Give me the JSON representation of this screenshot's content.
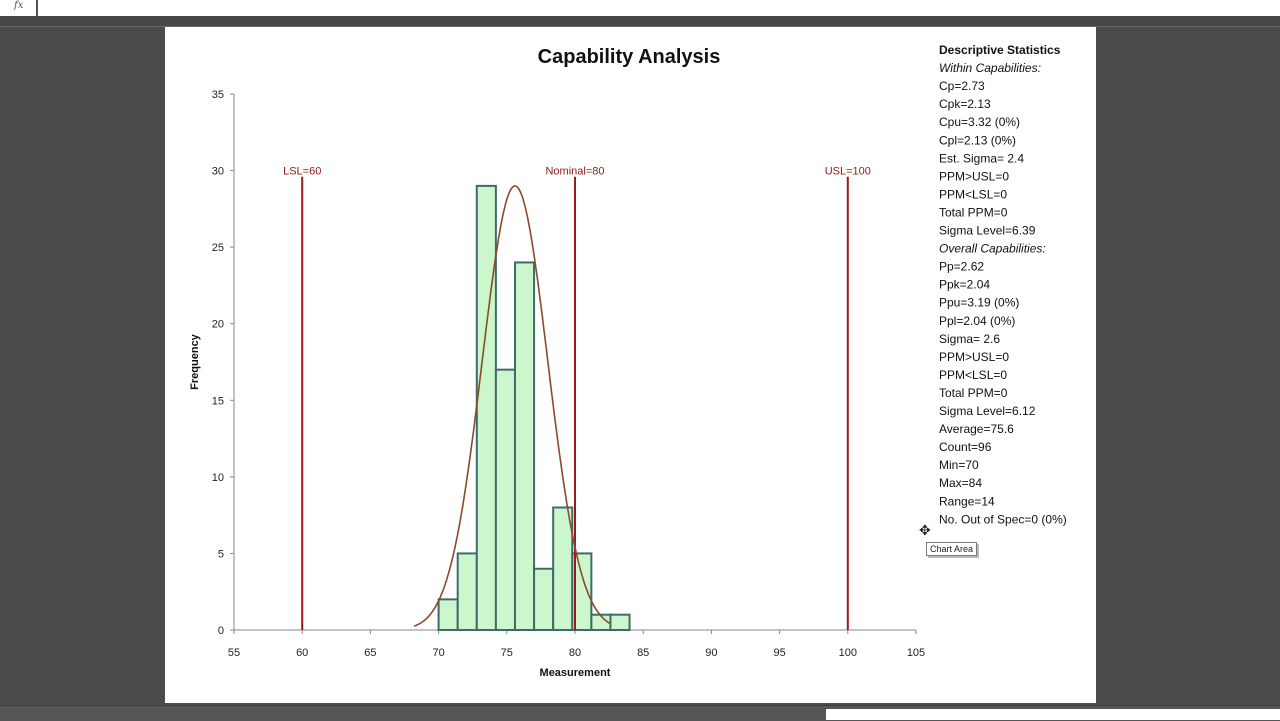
{
  "formula_bar": {
    "fx_label": "fx"
  },
  "chart_data": {
    "type": "bar",
    "title": "Capability Analysis",
    "xlabel": "Measurement",
    "ylabel": "Frequency",
    "xlim": [
      55,
      105
    ],
    "ylim": [
      0,
      35
    ],
    "x_ticks": [
      "55",
      "60",
      "65",
      "70",
      "75",
      "80",
      "85",
      "90",
      "95",
      "100",
      "105"
    ],
    "y_ticks": [
      "0",
      "5",
      "10",
      "15",
      "20",
      "25",
      "30",
      "35"
    ],
    "grid": false,
    "bins": [
      {
        "start": 70.0,
        "end": 71.4,
        "count": 2
      },
      {
        "start": 71.4,
        "end": 72.8,
        "count": 5
      },
      {
        "start": 72.8,
        "end": 74.2,
        "count": 29
      },
      {
        "start": 74.2,
        "end": 75.6,
        "count": 17
      },
      {
        "start": 75.6,
        "end": 77.0,
        "count": 24
      },
      {
        "start": 77.0,
        "end": 78.4,
        "count": 4
      },
      {
        "start": 78.4,
        "end": 79.8,
        "count": 8
      },
      {
        "start": 79.8,
        "end": 81.2,
        "count": 5
      },
      {
        "start": 81.2,
        "end": 82.6,
        "count": 1
      },
      {
        "start": 82.6,
        "end": 84.0,
        "count": 1
      }
    ],
    "normal_curve": {
      "mean": 75.6,
      "sigma": 2.4,
      "peak": 29,
      "x_range": [
        68.2,
        82.6
      ],
      "color": "#8b4a2b"
    },
    "spec_lines": [
      {
        "label": "LSL=60",
        "value": 60
      },
      {
        "label": "Nominal=80",
        "value": 80
      },
      {
        "label": "USL=100",
        "value": 100
      }
    ],
    "colors": {
      "bar_fill": "#ccf7cc",
      "bar_edge": "#3d6b6b",
      "spec_line": "#a01818",
      "spec_label": "#8b1a1a"
    }
  },
  "stats": {
    "heading": "Descriptive Statistics",
    "within_heading": "Within Capabilities:",
    "within": [
      "Cp=2.73",
      "Cpk=2.13",
      "Cpu=3.32 (0%)",
      "Cpl=2.13 (0%)",
      "Est. Sigma= 2.4",
      "PPM>USL=0",
      "PPM<LSL=0",
      "Total PPM=0",
      "Sigma Level=6.39"
    ],
    "overall_heading": "Overall Capabilities:",
    "overall": [
      "Pp=2.62",
      "Ppk=2.04",
      "Ppu=3.19 (0%)",
      "Ppl=2.04 (0%)",
      "Sigma= 2.6",
      "PPM>USL=0",
      "PPM<LSL=0",
      "Total PPM=0",
      "Sigma Level=6.12"
    ],
    "summary": [
      "Average=75.6",
      "Count=96",
      "Min=70",
      "Max=84",
      "Range=14",
      "No. Out of Spec=0 (0%)"
    ]
  },
  "tooltip": {
    "label": "Chart Area"
  }
}
